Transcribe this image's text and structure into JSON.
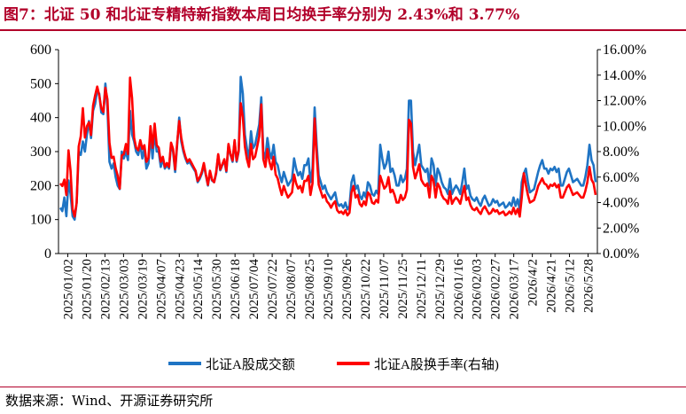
{
  "title": "图7：北证 50 和北证专精特新指数本周日均换手率分别为 2.43%和 3.77%",
  "source": "数据来源：Wind、开源证券研究所",
  "colors": {
    "title": "#B2002A",
    "series_volume": "#1F74C4",
    "series_turnover": "#FF0000"
  },
  "chart_data": {
    "type": "line",
    "title": "",
    "xlabel": "",
    "ylabel": "",
    "ylabel_right": "",
    "x_tick_labels": [
      "2025/01/02",
      "2025/01/20",
      "2025/02/13",
      "2025/03/03",
      "2025/03/19",
      "2025/04/07",
      "2025/04/23",
      "2025/05/14",
      "2025/05/30",
      "2025/06/18",
      "2025/07/04",
      "2025/07/22",
      "2025/08/07",
      "2025/08/25",
      "2025/09/10",
      "2025/09/26",
      "2025/10/22",
      "2025/11/07",
      "2025/11/25",
      "2025/12/11",
      "2025/12/29",
      "2026/01/16",
      "2026/02/03",
      "2026/02/27",
      "2026/03/17",
      "2026/4/2",
      "2026/4/21",
      "2026/5/12",
      "2026/5/28"
    ],
    "y_left": {
      "lim": [
        0,
        600
      ],
      "ticks": [
        0,
        100,
        200,
        300,
        400,
        500,
        600
      ],
      "tick_labels": [
        "0",
        "100",
        "200",
        "300",
        "400",
        "500",
        "600"
      ]
    },
    "y_right": {
      "lim": [
        0,
        16
      ],
      "ticks": [
        0,
        2,
        4,
        6,
        8,
        10,
        12,
        14,
        16
      ],
      "tick_labels": [
        "0.00%",
        "2.00%",
        "4.00%",
        "6.00%",
        "8.00%",
        "10.00%",
        "12.00%",
        "14.00%",
        "16.00%"
      ]
    },
    "legend_position": "bottom-center",
    "grid": false,
    "series": [
      {
        "name": "北证A股成交额",
        "axis": "left",
        "values": [
          135,
          125,
          165,
          110,
          215,
          175,
          110,
          100,
          150,
          300,
          290,
          330,
          300,
          350,
          390,
          340,
          420,
          440,
          480,
          470,
          415,
          410,
          500,
          430,
          270,
          250,
          265,
          225,
          200,
          190,
          300,
          280,
          300,
          275,
          420,
          350,
          330,
          300,
          290,
          320,
          280,
          310,
          250,
          265,
          350,
          280,
          360,
          300,
          300,
          255,
          280,
          250,
          260,
          250,
          320,
          300,
          240,
          320,
          400,
          330,
          300,
          280,
          265,
          270,
          260,
          250,
          240,
          210,
          220,
          235,
          260,
          230,
          200,
          240,
          215,
          210,
          235,
          290,
          245,
          260,
          275,
          240,
          320,
          290,
          270,
          330,
          270,
          300,
          520,
          470,
          350,
          310,
          280,
          360,
          310,
          320,
          350,
          380,
          460,
          300,
          280,
          340,
          300,
          280,
          320,
          270,
          260,
          230,
          210,
          240,
          220,
          200,
          210,
          220,
          280,
          250,
          230,
          240,
          220,
          260,
          260,
          280,
          210,
          250,
          430,
          320,
          230,
          210,
          190,
          200,
          180,
          170,
          160,
          170,
          180,
          150,
          140,
          145,
          135,
          150,
          130,
          140,
          210,
          230,
          190,
          200,
          170,
          160,
          180,
          165,
          210,
          200,
          175,
          170,
          185,
          175,
          320,
          280,
          250,
          265,
          300,
          240,
          250,
          230,
          200,
          200,
          230,
          210,
          220,
          250,
          450,
          450,
          300,
          260,
          290,
          320,
          260,
          250,
          240,
          250,
          200,
          280,
          260,
          200,
          250,
          235,
          210,
          195,
          190,
          175,
          220,
          175,
          190,
          200,
          190,
          175,
          210,
          250,
          190,
          200,
          170,
          160,
          155,
          165,
          150,
          140,
          160,
          170,
          155,
          140,
          145,
          160,
          150,
          155,
          140,
          145,
          150,
          135,
          140,
          150,
          140,
          165,
          140,
          160,
          130,
          210,
          235,
          250,
          210,
          180,
          185,
          190,
          215,
          240,
          260,
          275,
          250,
          250,
          235,
          250,
          245,
          255,
          240,
          250,
          200,
          200,
          220,
          240,
          250,
          230,
          210,
          215,
          220,
          210,
          200,
          200,
          225,
          260,
          320,
          275,
          260,
          210
        ]
      },
      {
        "name": "北证A股换手率(右轴)",
        "axis": "right",
        "values": [
          5.5,
          5.3,
          5.8,
          4.6,
          8.1,
          6.5,
          3.5,
          2.9,
          4.0,
          8.4,
          9.2,
          11.4,
          9.1,
          10.0,
          10.3,
          9.3,
          11.6,
          12.4,
          13.1,
          12.4,
          11.4,
          11.1,
          13.0,
          12.1,
          8.7,
          7.5,
          7.6,
          6.7,
          6.1,
          5.1,
          7.7,
          7.8,
          8.6,
          7.8,
          13.8,
          12.2,
          9.1,
          8.3,
          8.1,
          8.9,
          8.2,
          8.5,
          7.2,
          7.5,
          10.0,
          8.3,
          10.2,
          8.5,
          8.3,
          7.2,
          7.6,
          6.8,
          7.1,
          6.8,
          8.7,
          8.2,
          6.6,
          8.7,
          10.4,
          9.1,
          8.2,
          7.6,
          7.2,
          7.4,
          7.1,
          6.8,
          6.5,
          5.7,
          6.0,
          6.4,
          7.1,
          6.2,
          5.4,
          6.5,
          5.8,
          5.6,
          6.4,
          7.8,
          6.6,
          7.0,
          7.4,
          6.5,
          8.6,
          7.8,
          7.3,
          8.9,
          7.3,
          8.1,
          11.8,
          10.7,
          8.4,
          7.4,
          6.8,
          8.6,
          7.4,
          7.6,
          8.4,
          9.2,
          11.7,
          7.4,
          6.8,
          8.2,
          7.2,
          6.6,
          7.6,
          6.2,
          5.9,
          5.2,
          4.6,
          5.3,
          4.8,
          4.4,
          4.6,
          4.8,
          6.2,
          5.5,
          5.1,
          5.3,
          4.8,
          5.7,
          5.7,
          6.1,
          4.6,
          5.5,
          10.6,
          7.7,
          5.4,
          4.9,
          4.4,
          4.6,
          4.1,
          3.9,
          3.6,
          3.9,
          4.1,
          3.4,
          3.2,
          3.3,
          3.1,
          3.4,
          3.0,
          3.2,
          4.8,
          5.3,
          4.4,
          4.6,
          3.9,
          3.7,
          4.1,
          3.8,
          4.8,
          4.6,
          4.0,
          3.9,
          4.2,
          4.0,
          6.1,
          5.6,
          5.1,
          5.3,
          6.0,
          4.8,
          5.0,
          4.6,
          4.0,
          4.0,
          4.6,
          4.2,
          4.4,
          5.0,
          10.5,
          10.2,
          6.8,
          5.9,
          6.4,
          7.0,
          5.8,
          5.5,
          5.3,
          5.5,
          4.4,
          6.1,
          5.7,
          4.4,
          5.5,
          5.2,
          4.6,
          4.3,
          4.2,
          3.9,
          4.9,
          3.9,
          4.2,
          4.4,
          4.2,
          3.9,
          4.6,
          5.3,
          4.2,
          4.4,
          3.8,
          3.5,
          3.4,
          3.6,
          3.3,
          3.1,
          3.5,
          3.7,
          3.4,
          3.1,
          3.2,
          3.5,
          3.3,
          3.4,
          3.1,
          3.2,
          3.3,
          3.0,
          3.1,
          3.3,
          3.1,
          3.6,
          3.1,
          3.5,
          2.9,
          4.4,
          6.3,
          5.4,
          4.6,
          4.0,
          4.1,
          4.2,
          4.7,
          5.3,
          5.6,
          5.9,
          5.5,
          5.4,
          5.1,
          5.4,
          5.3,
          5.5,
          5.2,
          5.4,
          4.4,
          4.4,
          4.8,
          5.2,
          5.4,
          5.0,
          4.6,
          4.7,
          4.8,
          4.6,
          4.4,
          4.4,
          4.9,
          5.6,
          6.8,
          5.8,
          5.5,
          4.6
        ]
      }
    ]
  }
}
